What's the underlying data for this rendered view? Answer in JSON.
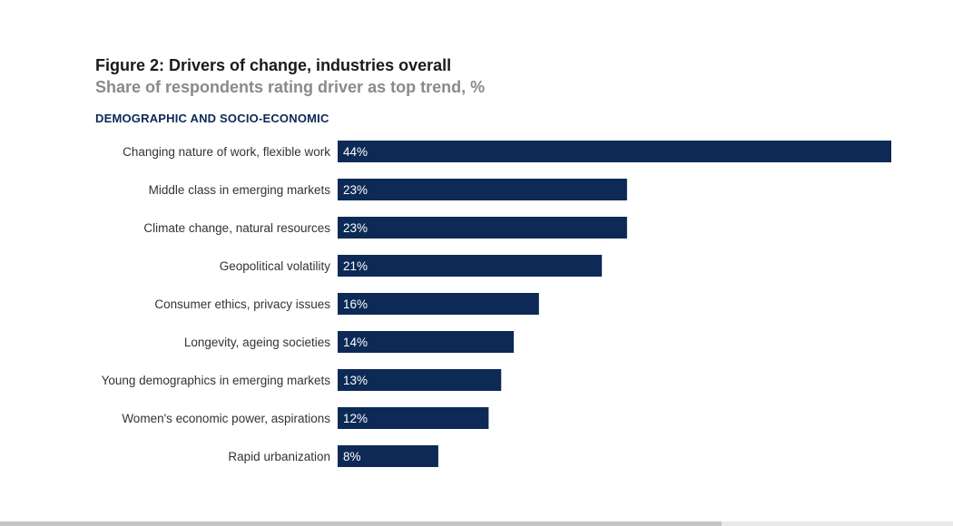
{
  "header": {
    "title": "Figure 2: Drivers of change, industries overall",
    "subtitle": "Share of respondents rating driver as top trend, %",
    "section": "DEMOGRAPHIC AND SOCIO-ECONOMIC"
  },
  "colors": {
    "bar": "#0c2a55",
    "section_heading": "#0c2a55"
  },
  "chart_data": {
    "type": "bar",
    "orientation": "horizontal",
    "title": "Figure 2: Drivers of change, industries overall",
    "subtitle": "Share of respondents rating driver as top trend, %",
    "group": "DEMOGRAPHIC AND SOCIO-ECONOMIC",
    "categories": [
      "Changing nature of work, flexible work",
      "Middle class in emerging markets",
      "Climate change, natural resources",
      "Geopolitical volatility",
      "Consumer ethics, privacy issues",
      "Longevity, ageing societies",
      "Young demographics in emerging markets",
      "Women's economic power, aspirations",
      "Rapid urbanization"
    ],
    "values": [
      44,
      23,
      23,
      21,
      16,
      14,
      13,
      12,
      8
    ],
    "value_labels": [
      "44%",
      "23%",
      "23%",
      "21%",
      "16%",
      "14%",
      "13%",
      "12%",
      "8%"
    ],
    "xlim": [
      0,
      44
    ],
    "grid": false,
    "legend": "none"
  }
}
